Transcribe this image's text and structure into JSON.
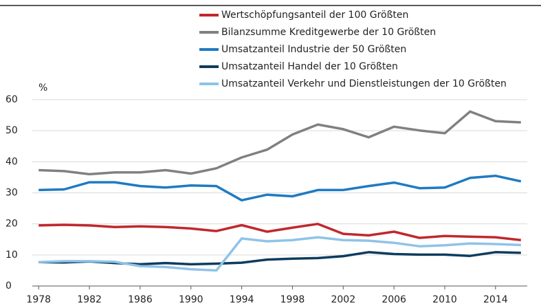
{
  "chart_data": {
    "type": "line",
    "y_label": "%",
    "x": [
      1978,
      1980,
      1982,
      1984,
      1986,
      1988,
      1990,
      1992,
      1994,
      1996,
      1998,
      2000,
      2002,
      2004,
      2006,
      2008,
      2010,
      2012,
      2014,
      2016
    ],
    "series": [
      {
        "name": "Wertschöpfungsanteil der 100 Größten",
        "color": "#c0282d",
        "values": [
          19.5,
          19.7,
          19.5,
          19.0,
          19.2,
          19.0,
          18.5,
          17.7,
          19.6,
          17.5,
          18.8,
          20.0,
          16.8,
          16.3,
          17.5,
          15.5,
          16.1,
          15.9,
          15.7,
          14.8
        ]
      },
      {
        "name": "Bilanzsumme Kreditgewerbe der 10 Größten",
        "color": "#808080",
        "values": [
          37.3,
          37.0,
          36.0,
          36.6,
          36.6,
          37.3,
          36.2,
          37.9,
          41.4,
          43.9,
          48.8,
          52.0,
          50.5,
          47.9,
          51.3,
          50.1,
          49.2,
          56.2,
          53.1,
          52.7
        ]
      },
      {
        "name": "Umsatzanteil Industrie der 50 Größten",
        "color": "#1f7ac2",
        "values": [
          30.9,
          31.1,
          33.4,
          33.4,
          32.2,
          31.7,
          32.4,
          32.2,
          27.6,
          29.4,
          28.9,
          30.9,
          30.9,
          32.2,
          33.3,
          31.5,
          31.7,
          34.8,
          35.5,
          33.7
        ]
      },
      {
        "name": "Umsatzanteil Handel der 10 Größten",
        "color": "#0d3c5e",
        "values": [
          7.7,
          7.6,
          7.9,
          7.4,
          7.0,
          7.4,
          7.0,
          7.2,
          7.5,
          8.5,
          8.8,
          9.0,
          9.6,
          10.9,
          10.3,
          10.1,
          10.1,
          9.7,
          10.9,
          10.7
        ]
      },
      {
        "name": "Umsatzanteil Verkehr und Dienstleistungen der 10 Größten",
        "color": "#8fc3e8",
        "values": [
          7.7,
          8.0,
          8.0,
          7.8,
          6.4,
          6.1,
          5.4,
          5.0,
          15.3,
          14.4,
          14.8,
          15.7,
          14.8,
          14.6,
          13.9,
          12.8,
          13.1,
          13.7,
          13.5,
          13.2
        ]
      }
    ],
    "xlim": [
      1977.5,
      2016.5
    ],
    "xticks": [
      1978,
      1982,
      1986,
      1990,
      1994,
      1998,
      2002,
      2006,
      2010,
      2014
    ],
    "ylim": [
      0,
      60
    ],
    "yticks": [
      0,
      10,
      20,
      30,
      40,
      50,
      60
    ],
    "grid": true
  }
}
